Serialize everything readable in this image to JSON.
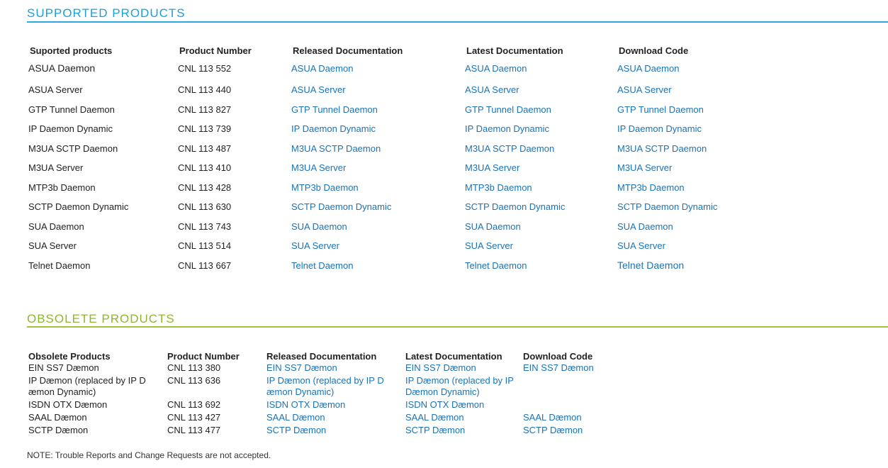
{
  "supported": {
    "title": "SUPPORTED PRODUCTS",
    "headers": [
      "Suported products",
      "Product Number",
      "Released Documentation",
      "Latest Documentation",
      "Download Code"
    ],
    "rows": [
      {
        "name": "ASUA Daemon",
        "number": "CNL 113 552",
        "released": "ASUA Daemon",
        "latest": "ASUA Daemon",
        "download": "ASUA Daemon"
      },
      {
        "name": "ASUA Server",
        "number": "CNL 113 440",
        "released": "ASUA Server",
        "latest": "ASUA Server",
        "download": "ASUA Server"
      },
      {
        "name": "GTP Tunnel Daemon",
        "number": "CNL 113 827",
        "released": "GTP Tunnel Daemon",
        "latest": "GTP Tunnel Daemon",
        "download": "GTP Tunnel Daemon"
      },
      {
        "name": "IP Daemon Dynamic",
        "number": "CNL 113 739",
        "released": "IP Daemon Dynamic",
        "latest": "IP Daemon Dynamic",
        "download": "IP Daemon Dynamic"
      },
      {
        "name": "M3UA SCTP Daemon",
        "number": "CNL 113 487",
        "released": "M3UA SCTP Daemon",
        "latest": "M3UA SCTP Daemon",
        "download": "M3UA SCTP Daemon"
      },
      {
        "name": "M3UA Server",
        "number": "CNL 113 410",
        "released": "M3UA Server",
        "latest": "M3UA Server",
        "download": "M3UA Server"
      },
      {
        "name": "MTP3b Daemon",
        "number": "CNL 113 428",
        "released": "MTP3b Daemon",
        "latest": "MTP3b Daemon",
        "download": "MTP3b Daemon"
      },
      {
        "name": "SCTP Daemon Dynamic",
        "number": "CNL 113 630",
        "released": "SCTP Daemon Dynamic",
        "latest": "SCTP Daemon Dynamic",
        "download": "SCTP Daemon Dynamic"
      },
      {
        "name": "SUA Daemon",
        "number": "CNL 113 743",
        "released": "SUA Daemon",
        "latest": "SUA Daemon",
        "download": "SUA Daemon"
      },
      {
        "name": "SUA Server",
        "number": "CNL 113 514",
        "released": "SUA Server",
        "latest": "SUA Server",
        "download": "SUA Server"
      },
      {
        "name": "Telnet Daemon",
        "number": "CNL 113 667",
        "released": "Telnet Daemon",
        "latest": "Telnet Daemon",
        "download": "Telnet Daemon"
      }
    ]
  },
  "obsolete": {
    "title": "OBSOLETE PRODUCTS",
    "headers": [
      "Obsolete Products",
      "Product Number",
      "Released Documentation",
      "Latest Documentation",
      "Download Code"
    ],
    "rows": [
      {
        "name": "EIN SS7 Dæmon",
        "number": "CNL 113 380",
        "released": "EIN SS7 Dæmon",
        "latest": "EIN SS7 Dæmon",
        "download": "EIN SS7 Dæmon"
      },
      {
        "name": "IP Dæmon (replaced by IP D æmon Dynamic)",
        "number": "CNL 113 636",
        "released": "IP Dæmon (replaced by IP D æmon Dynamic)",
        "latest": "IP Dæmon (replaced by IP Dæmon Dynamic)",
        "download": ""
      },
      {
        "name": "ISDN OTX Dæmon",
        "number": "CNL 113 692",
        "released": "ISDN OTX Dæmon",
        "latest": "ISDN OTX Dæmon",
        "download": ""
      },
      {
        "name": "SAAL Dæmon",
        "number": "CNL 113 427",
        "released": "SAAL Dæmon",
        "latest": "SAAL Dæmon",
        "download": "SAAL Dæmon"
      },
      {
        "name": "SCTP Dæmon",
        "number": "CNL 113 477",
        "released": "SCTP Dæmon",
        "latest": "SCTP Dæmon",
        "download": "SCTP Dæmon"
      }
    ]
  },
  "note": "NOTE: Trouble Reports and Change Requests are not accepted.",
  "colors": {
    "supported_accent": "#29a9df",
    "obsolete_accent": "#9dc43a",
    "link": "#1a73b8"
  }
}
